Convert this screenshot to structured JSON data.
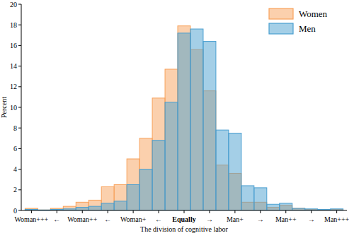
{
  "chart_data": {
    "type": "histogram",
    "x_label": "The division of cognitive labor",
    "y_label": "Percent",
    "bins": [
      -3.125,
      -2.875,
      -2.625,
      -2.375,
      -2.125,
      -1.875,
      -1.625,
      -1.375,
      -1.125,
      -0.875,
      -0.625,
      -0.375,
      -0.125,
      0.125,
      0.375,
      0.625,
      0.875,
      1.125,
      1.375,
      1.625,
      1.875,
      2.125,
      2.375,
      2.625,
      2.875,
      3.125
    ],
    "series": [
      {
        "name": "Women",
        "color": "#f8a25c",
        "values": [
          0.2,
          0.05,
          0.2,
          0.4,
          0.8,
          1.0,
          2.3,
          2.5,
          5.0,
          7.0,
          10.9,
          13.7,
          17.9,
          15.6,
          11.6,
          4.4,
          3.6,
          0.8,
          0.8,
          0.3,
          0.5,
          0.2,
          0.1,
          0.05,
          0.1
        ]
      },
      {
        "name": "Men",
        "color": "#4a9fd0",
        "values": [
          0.1,
          0.05,
          0.1,
          0.15,
          0.3,
          0.4,
          0.7,
          0.9,
          2.5,
          4.0,
          6.8,
          10.5,
          17.2,
          17.6,
          16.4,
          7.8,
          7.5,
          2.4,
          2.2,
          0.6,
          0.7,
          0.2,
          0.15,
          0.1,
          0.15
        ]
      }
    ],
    "xlim": [
      -3.2,
      3.2
    ],
    "ylim": [
      0,
      20
    ],
    "xticks": [
      {
        "value": -3,
        "label": "Woman+++"
      },
      {
        "value": -2.5,
        "label": "←"
      },
      {
        "value": -2,
        "label": "Woman++"
      },
      {
        "value": -1.5,
        "label": "←"
      },
      {
        "value": -1,
        "label": "Woman+"
      },
      {
        "value": -0.5,
        "label": "←"
      },
      {
        "value": 0,
        "label": "Equally"
      },
      {
        "value": 0.5,
        "label": "→"
      },
      {
        "value": 1,
        "label": "Man+"
      },
      {
        "value": 1.5,
        "label": "→"
      },
      {
        "value": 2,
        "label": "Man++"
      },
      {
        "value": 2.5,
        "label": "→"
      },
      {
        "value": 3,
        "label": "Man+++"
      }
    ],
    "yticks": [
      0,
      2,
      4,
      6,
      8,
      10,
      12,
      14,
      16,
      18,
      20
    ],
    "grid": false,
    "legend": "top-right"
  }
}
